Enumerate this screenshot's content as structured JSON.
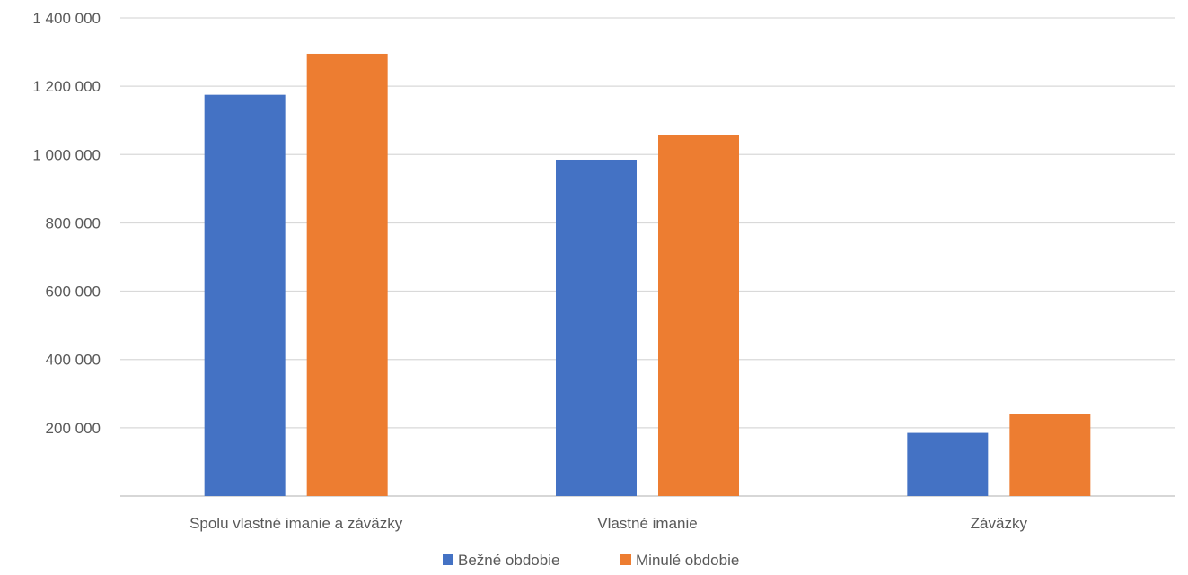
{
  "chart_data": {
    "type": "bar",
    "categories": [
      "Spolu vlastné imanie a záväzky",
      "Vlastné imanie",
      "Záväzky"
    ],
    "series": [
      {
        "name": "Bežné obdobie",
        "values": [
          1175000,
          985000,
          185000
        ],
        "color": "#4472C4"
      },
      {
        "name": "Minulé obdobie",
        "values": [
          1295000,
          1057000,
          241000
        ],
        "color": "#ED7D31"
      }
    ],
    "yticks": [
      "200 000",
      "400 000",
      "600 000",
      "800 000",
      "1 000 000",
      "1 200 000",
      "1 400 000"
    ],
    "ylim": [
      0,
      1400000
    ],
    "grid": true,
    "legend_position": "bottom"
  }
}
